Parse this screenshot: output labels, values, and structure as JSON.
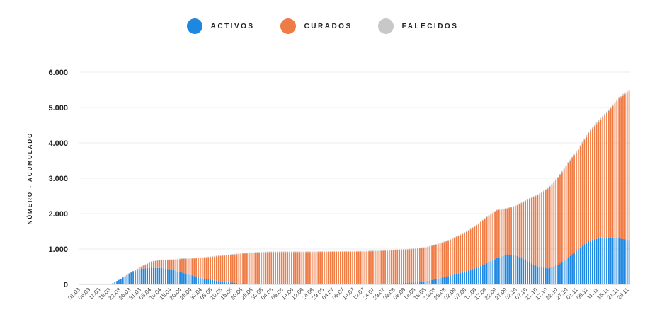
{
  "legend": [
    {
      "label": "ACTIVOS",
      "color": "#1f87e0"
    },
    {
      "label": "CURADOS",
      "color": "#ef7b45"
    },
    {
      "label": "FALECIDOS",
      "color": "#c8c8c8"
    }
  ],
  "chart_data": {
    "type": "bar",
    "stacked": true,
    "title": "",
    "xlabel": "",
    "ylabel": "NÚMERO - ACUMULADO",
    "ylim": [
      0,
      6000
    ],
    "yticks": [
      0,
      1000,
      2000,
      3000,
      4000,
      5000,
      6000
    ],
    "ytick_labels": [
      "0",
      "1.000",
      "2.000",
      "3.000",
      "4.000",
      "5.000",
      "6.000"
    ],
    "grid": true,
    "legend_position": "top-center",
    "categories": [
      "01.03",
      "06.03",
      "11.03",
      "16.03",
      "21.03",
      "26.03",
      "31.03",
      "05.04",
      "10.04",
      "15.04",
      "20.04",
      "25.04",
      "30.04",
      "05.05",
      "10.05",
      "15.05",
      "20.05",
      "25.05",
      "30.05",
      "04.06",
      "09.06",
      "14.06",
      "19.06",
      "24.06",
      "29.06",
      "04.07",
      "09.07",
      "14.07",
      "19.07",
      "24.07",
      "29.07",
      "03.08",
      "08.08",
      "13.08",
      "18.08",
      "23.08",
      "28.08",
      "02.09",
      "07.09",
      "12.09",
      "17.09",
      "22.09",
      "27.09",
      "02.10",
      "07.10",
      "12.10",
      "17.10",
      "22.10",
      "27.10",
      "01.11",
      "06.11",
      "11.11",
      "16.11",
      "21.11",
      "26.11"
    ],
    "series": [
      {
        "name": "ACTIVOS",
        "color": "#1f87e0",
        "values": [
          0,
          0,
          0,
          5,
          160,
          330,
          440,
          470,
          460,
          420,
          330,
          250,
          170,
          120,
          80,
          50,
          30,
          20,
          15,
          12,
          10,
          8,
          8,
          8,
          8,
          8,
          10,
          10,
          12,
          15,
          20,
          30,
          40,
          60,
          90,
          150,
          220,
          300,
          370,
          470,
          600,
          740,
          850,
          800,
          650,
          500,
          450,
          560,
          750,
          1000,
          1230,
          1300,
          1300,
          1300,
          1250
        ]
      },
      {
        "name": "CURADOS",
        "color": "#ef7b45",
        "values": [
          0,
          0,
          0,
          0,
          0,
          20,
          60,
          170,
          230,
          270,
          390,
          480,
          580,
          660,
          730,
          790,
          840,
          870,
          890,
          900,
          905,
          905,
          905,
          908,
          910,
          912,
          912,
          915,
          915,
          925,
          930,
          935,
          940,
          945,
          950,
          970,
          990,
          1040,
          1110,
          1200,
          1300,
          1350,
          1290,
          1430,
          1740,
          2020,
          2250,
          2450,
          2670,
          2800,
          3050,
          3300,
          3600,
          3950,
          4200
        ]
      },
      {
        "name": "FALECIDOS",
        "color": "#c8c8c8",
        "values": [
          0,
          0,
          0,
          0,
          2,
          5,
          10,
          14,
          16,
          17,
          18,
          18,
          19,
          19,
          19,
          19,
          19,
          19,
          19,
          19,
          19,
          19,
          19,
          19,
          19,
          19,
          19,
          19,
          19,
          19,
          19,
          19,
          19,
          19,
          19,
          19,
          20,
          20,
          20,
          20,
          20,
          21,
          21,
          22,
          23,
          25,
          26,
          28,
          32,
          36,
          40,
          44,
          48,
          52,
          56
        ]
      }
    ]
  }
}
